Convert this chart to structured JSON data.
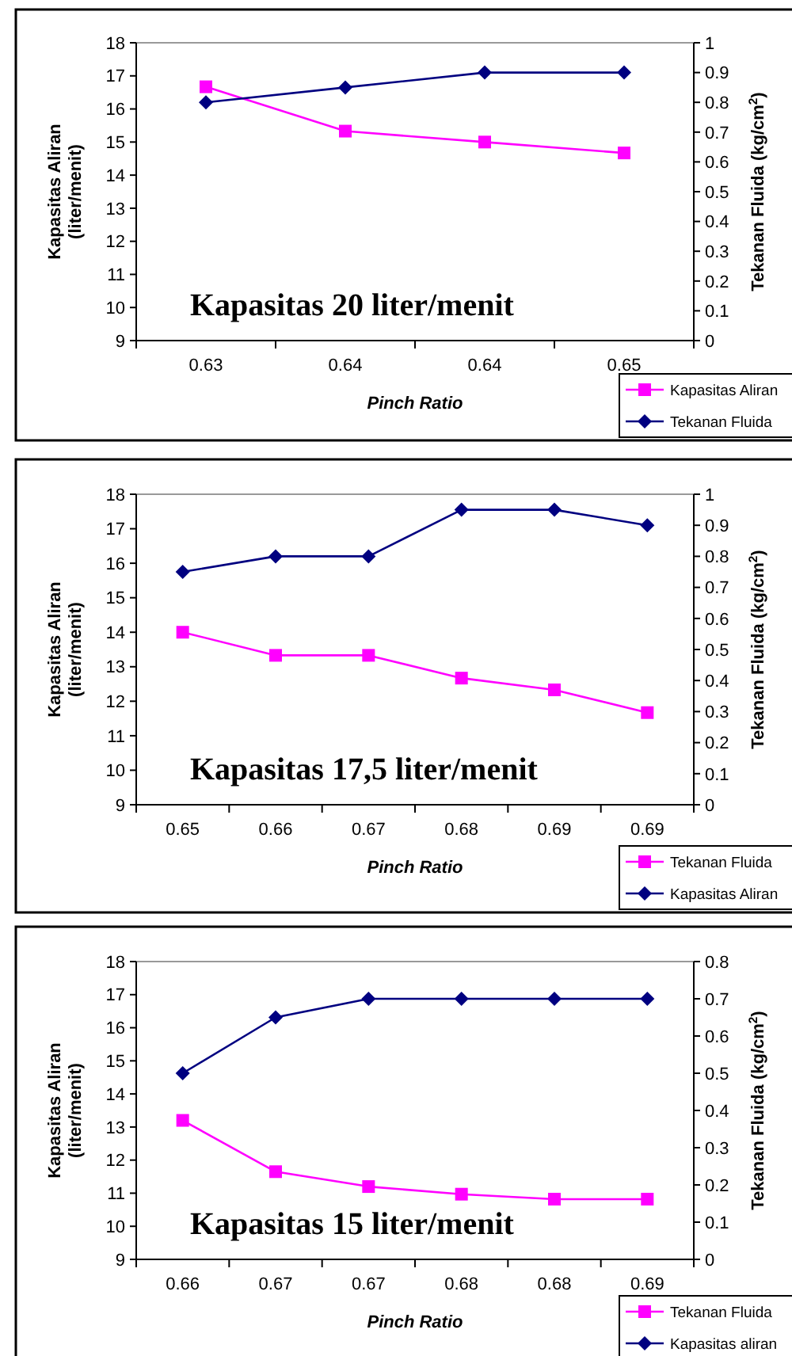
{
  "chart_data": [
    {
      "type": "line",
      "xlabel": "Pinch Ratio",
      "ylabel": "Kapasitas Aliran (liter/menit)",
      "y2label": "Tekanan Fluida (kg/cm$^{2}$)",
      "annotations": [
        "Kapasitas 20 liter/menit"
      ],
      "categories": [
        "0.63",
        "0.64",
        "0.64",
        "0.65"
      ],
      "ylim": [
        9,
        18
      ],
      "yticks": [
        9,
        10,
        11,
        12,
        13,
        14,
        15,
        16,
        17,
        18
      ],
      "y2lim": [
        0,
        1
      ],
      "y2ticks": [
        0,
        0.1,
        0.2,
        0.3,
        0.4,
        0.5,
        0.6,
        0.7,
        0.8,
        0.9,
        1
      ],
      "grid": false,
      "legend": "bottom right",
      "series": [
        {
          "name": "Kapasitas Aliran",
          "color": "#ff00ff",
          "marker": "square",
          "values": [
            16.67,
            15.33,
            15.0,
            14.67
          ]
        },
        {
          "name": "Tekanan Fluida",
          "color": "#000080",
          "marker": "diamond",
          "axis": "y2",
          "values": [
            0.8,
            0.85,
            0.9,
            0.9
          ]
        }
      ]
    },
    {
      "type": "line",
      "xlabel": "Pinch Ratio",
      "ylabel": "Kapasitas Aliran (liter/menit)",
      "y2label": "Tekanan Fluida (kg/cm$^{2}$)",
      "annotations": [
        "Kapasitas 17,5 liter/menit"
      ],
      "categories": [
        "0.65",
        "0.66",
        "0.67",
        "0.68",
        "0.69",
        "0.69"
      ],
      "ylim": [
        9,
        18
      ],
      "yticks": [
        9,
        10,
        11,
        12,
        13,
        14,
        15,
        16,
        17,
        18
      ],
      "y2lim": [
        0,
        1
      ],
      "y2ticks": [
        0,
        0.1,
        0.2,
        0.3,
        0.4,
        0.5,
        0.6,
        0.7,
        0.8,
        0.9,
        1
      ],
      "grid": false,
      "legend": "bottom right",
      "series": [
        {
          "name": "Tekanan Fluida",
          "color": "#ff00ff",
          "marker": "square",
          "values": [
            14.0,
            13.33,
            13.33,
            12.67,
            12.33,
            11.67
          ]
        },
        {
          "name": "Kapasitas Aliran",
          "color": "#000080",
          "marker": "diamond",
          "axis": "y2",
          "values": [
            0.75,
            0.8,
            0.8,
            0.95,
            0.95,
            0.9
          ]
        }
      ]
    },
    {
      "type": "line",
      "xlabel": "Pinch Ratio",
      "ylabel": "Kapasitas Aliran (liter/menit)",
      "y2label": "Tekanan Fluida (kg/cm$^{2}$)",
      "annotations": [
        "Kapasitas 15 liter/menit"
      ],
      "categories": [
        "0.66",
        "0.67",
        "0.67",
        "0.68",
        "0.68",
        "0.69"
      ],
      "ylim": [
        9,
        18
      ],
      "yticks": [
        9,
        10,
        11,
        12,
        13,
        14,
        15,
        16,
        17,
        18
      ],
      "y2lim": [
        0,
        0.8
      ],
      "y2ticks": [
        0,
        0.1,
        0.2,
        0.3,
        0.4,
        0.5,
        0.6,
        0.7,
        0.8
      ],
      "grid": false,
      "legend": "bottom right",
      "series": [
        {
          "name": "Tekanan Fluida",
          "color": "#ff00ff",
          "marker": "square",
          "values": [
            13.2,
            11.65,
            11.2,
            10.97,
            10.82,
            10.82
          ]
        },
        {
          "name": "Kapasitas aliran",
          "color": "#000080",
          "marker": "diamond",
          "axis": "y2",
          "values": [
            0.5,
            0.65,
            0.7,
            0.7,
            0.7,
            0.7
          ]
        }
      ]
    }
  ]
}
